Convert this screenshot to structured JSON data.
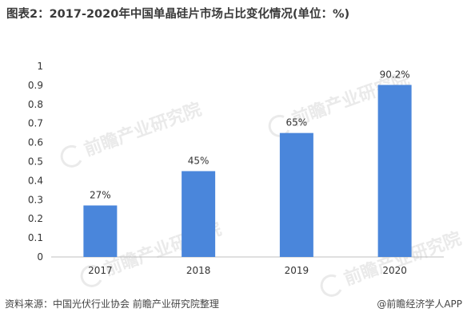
{
  "title": "图表2：2017-2020年中国单晶硅片市场占比变化情况(单位：%)",
  "watermark": "前瞻产业研究院",
  "footer": {
    "source": "资料来源：中国光伏行业协会 前瞻产业研究院整理",
    "app": "@前瞻经济学人APP"
  },
  "chart_data": {
    "type": "bar",
    "categories": [
      "2017",
      "2018",
      "2019",
      "2020"
    ],
    "values": [
      0.27,
      0.45,
      0.65,
      0.902
    ],
    "data_labels": [
      "27%",
      "45%",
      "65%",
      "90.2%"
    ],
    "ylim": [
      0,
      1
    ],
    "yticks": [
      0,
      0.1,
      0.2,
      0.3,
      0.4,
      0.5,
      0.6,
      0.7,
      0.8,
      0.9,
      1
    ],
    "ytick_labels": [
      "0",
      "0.1",
      "0.2",
      "0.3",
      "0.4",
      "0.5",
      "0.6",
      "0.7",
      "0.8",
      "0.9",
      "1"
    ],
    "grid": false,
    "bar_color": "#4a86db"
  }
}
